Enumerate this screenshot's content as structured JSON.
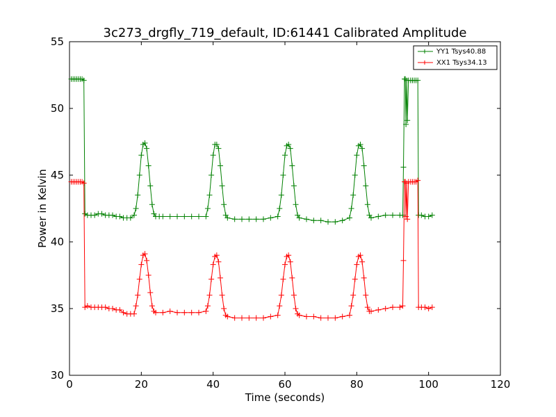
{
  "chart_data": {
    "type": "line",
    "title": "3c273_drgfly_719_default, ID:61441 Calibrated Amplitude",
    "xlabel": "Time (seconds)",
    "ylabel": "Power in Kelvin",
    "xlim": [
      0,
      120
    ],
    "ylim": [
      30,
      55
    ],
    "xticks": [
      "0",
      "20",
      "40",
      "60",
      "80",
      "100",
      "120"
    ],
    "yticks": [
      "30",
      "35",
      "40",
      "45",
      "50",
      "55"
    ],
    "grid": false,
    "legend_position": "top-right",
    "series": [
      {
        "name": "YY1 Tsys40.88",
        "color": "#008000",
        "marker": "+",
        "points": [
          [
            0.5,
            52.2
          ],
          [
            1.0,
            52.2
          ],
          [
            1.5,
            52.2
          ],
          [
            2.0,
            52.2
          ],
          [
            2.5,
            52.2
          ],
          [
            3.0,
            52.2
          ],
          [
            3.5,
            52.2
          ],
          [
            4.0,
            52.1
          ],
          [
            4.3,
            42.1
          ],
          [
            5.0,
            42.0
          ],
          [
            6.0,
            42.0
          ],
          [
            7.0,
            42.0
          ],
          [
            8.0,
            42.1
          ],
          [
            9.0,
            42.1
          ],
          [
            10.0,
            42.0
          ],
          [
            11.0,
            42.0
          ],
          [
            12.0,
            42.0
          ],
          [
            13.0,
            41.9
          ],
          [
            14.0,
            41.9
          ],
          [
            15.0,
            41.8
          ],
          [
            16.0,
            41.8
          ],
          [
            17.0,
            41.8
          ],
          [
            18.0,
            42.0
          ],
          [
            18.5,
            42.5
          ],
          [
            19.0,
            43.5
          ],
          [
            19.5,
            45.0
          ],
          [
            20.0,
            46.5
          ],
          [
            20.5,
            47.3
          ],
          [
            21.0,
            47.4
          ],
          [
            21.5,
            47.0
          ],
          [
            22.0,
            45.7
          ],
          [
            22.5,
            44.2
          ],
          [
            23.0,
            42.8
          ],
          [
            23.5,
            42.1
          ],
          [
            24.0,
            41.9
          ],
          [
            25.0,
            41.9
          ],
          [
            26.0,
            41.9
          ],
          [
            28.0,
            41.9
          ],
          [
            30.0,
            41.9
          ],
          [
            32.0,
            41.9
          ],
          [
            34.0,
            41.9
          ],
          [
            36.0,
            41.9
          ],
          [
            38.0,
            41.9
          ],
          [
            38.5,
            42.5
          ],
          [
            39.0,
            43.5
          ],
          [
            39.5,
            45.0
          ],
          [
            40.0,
            46.5
          ],
          [
            40.5,
            47.3
          ],
          [
            41.0,
            47.3
          ],
          [
            41.5,
            47.0
          ],
          [
            42.0,
            45.7
          ],
          [
            42.5,
            44.2
          ],
          [
            43.0,
            42.8
          ],
          [
            43.5,
            42.0
          ],
          [
            44.0,
            41.8
          ],
          [
            46.0,
            41.7
          ],
          [
            48.0,
            41.7
          ],
          [
            50.0,
            41.7
          ],
          [
            52.0,
            41.7
          ],
          [
            54.0,
            41.7
          ],
          [
            56.0,
            41.8
          ],
          [
            58.0,
            41.9
          ],
          [
            58.5,
            42.5
          ],
          [
            59.0,
            43.5
          ],
          [
            59.5,
            45.0
          ],
          [
            60.0,
            46.5
          ],
          [
            60.5,
            47.2
          ],
          [
            61.0,
            47.3
          ],
          [
            61.5,
            47.0
          ],
          [
            62.0,
            45.7
          ],
          [
            62.5,
            44.2
          ],
          [
            63.0,
            42.8
          ],
          [
            63.5,
            42.0
          ],
          [
            64.0,
            41.8
          ],
          [
            66.0,
            41.7
          ],
          [
            68.0,
            41.6
          ],
          [
            70.0,
            41.6
          ],
          [
            72.0,
            41.5
          ],
          [
            74.0,
            41.5
          ],
          [
            76.0,
            41.6
          ],
          [
            78.0,
            41.8
          ],
          [
            78.5,
            42.5
          ],
          [
            79.0,
            43.5
          ],
          [
            79.5,
            45.0
          ],
          [
            80.0,
            46.5
          ],
          [
            80.5,
            47.2
          ],
          [
            81.0,
            47.3
          ],
          [
            81.5,
            47.0
          ],
          [
            82.0,
            45.7
          ],
          [
            82.5,
            44.2
          ],
          [
            83.0,
            42.8
          ],
          [
            83.5,
            42.0
          ],
          [
            84.0,
            41.8
          ],
          [
            86.0,
            41.9
          ],
          [
            88.0,
            42.0
          ],
          [
            90.0,
            42.0
          ],
          [
            92.0,
            42.0
          ],
          [
            92.8,
            42.0
          ],
          [
            93.0,
            45.6
          ],
          [
            93.3,
            52.2
          ],
          [
            93.5,
            52.2
          ],
          [
            93.7,
            48.8
          ],
          [
            93.9,
            52.1
          ],
          [
            94.1,
            49.1
          ],
          [
            94.4,
            52.1
          ],
          [
            95.0,
            52.1
          ],
          [
            95.5,
            52.1
          ],
          [
            96.0,
            52.1
          ],
          [
            96.5,
            52.1
          ],
          [
            97.0,
            52.1
          ],
          [
            97.2,
            42.0
          ],
          [
            98.0,
            42.0
          ],
          [
            99.0,
            41.9
          ],
          [
            100.0,
            41.9
          ],
          [
            101.0,
            42.0
          ]
        ]
      },
      {
        "name": "XX1 Tsys34.13",
        "color": "#ff0000",
        "marker": "+",
        "points": [
          [
            0.5,
            44.5
          ],
          [
            1.0,
            44.5
          ],
          [
            1.5,
            44.5
          ],
          [
            2.0,
            44.5
          ],
          [
            2.5,
            44.5
          ],
          [
            3.0,
            44.5
          ],
          [
            3.5,
            44.5
          ],
          [
            4.0,
            44.4
          ],
          [
            4.3,
            35.1
          ],
          [
            5.0,
            35.2
          ],
          [
            6.0,
            35.1
          ],
          [
            7.0,
            35.1
          ],
          [
            8.0,
            35.1
          ],
          [
            9.0,
            35.1
          ],
          [
            10.0,
            35.1
          ],
          [
            11.0,
            35.0
          ],
          [
            12.0,
            35.0
          ],
          [
            13.0,
            34.9
          ],
          [
            14.0,
            34.9
          ],
          [
            15.0,
            34.7
          ],
          [
            16.0,
            34.6
          ],
          [
            17.0,
            34.6
          ],
          [
            18.0,
            34.6
          ],
          [
            18.5,
            35.2
          ],
          [
            19.0,
            36.0
          ],
          [
            19.5,
            37.2
          ],
          [
            20.0,
            38.3
          ],
          [
            20.5,
            39.0
          ],
          [
            21.0,
            39.1
          ],
          [
            21.5,
            38.6
          ],
          [
            22.0,
            37.5
          ],
          [
            22.5,
            36.2
          ],
          [
            23.0,
            35.2
          ],
          [
            23.5,
            34.8
          ],
          [
            24.0,
            34.7
          ],
          [
            26.0,
            34.7
          ],
          [
            28.0,
            34.8
          ],
          [
            30.0,
            34.7
          ],
          [
            32.0,
            34.7
          ],
          [
            34.0,
            34.7
          ],
          [
            36.0,
            34.7
          ],
          [
            38.0,
            34.8
          ],
          [
            38.5,
            35.2
          ],
          [
            39.0,
            36.0
          ],
          [
            39.5,
            37.2
          ],
          [
            40.0,
            38.3
          ],
          [
            40.5,
            38.9
          ],
          [
            41.0,
            39.0
          ],
          [
            41.5,
            38.5
          ],
          [
            42.0,
            37.3
          ],
          [
            42.5,
            36.0
          ],
          [
            43.0,
            35.0
          ],
          [
            43.5,
            34.5
          ],
          [
            44.0,
            34.4
          ],
          [
            46.0,
            34.3
          ],
          [
            48.0,
            34.3
          ],
          [
            50.0,
            34.3
          ],
          [
            52.0,
            34.3
          ],
          [
            54.0,
            34.3
          ],
          [
            56.0,
            34.4
          ],
          [
            58.0,
            34.5
          ],
          [
            58.5,
            35.2
          ],
          [
            59.0,
            36.0
          ],
          [
            59.5,
            37.2
          ],
          [
            60.0,
            38.3
          ],
          [
            60.5,
            38.9
          ],
          [
            61.0,
            39.0
          ],
          [
            61.5,
            38.5
          ],
          [
            62.0,
            37.3
          ],
          [
            62.5,
            36.0
          ],
          [
            63.0,
            35.0
          ],
          [
            63.5,
            34.6
          ],
          [
            64.0,
            34.5
          ],
          [
            66.0,
            34.4
          ],
          [
            68.0,
            34.4
          ],
          [
            70.0,
            34.3
          ],
          [
            72.0,
            34.3
          ],
          [
            74.0,
            34.3
          ],
          [
            76.0,
            34.4
          ],
          [
            78.0,
            34.5
          ],
          [
            78.5,
            35.2
          ],
          [
            79.0,
            36.0
          ],
          [
            79.5,
            37.2
          ],
          [
            80.0,
            38.3
          ],
          [
            80.5,
            38.9
          ],
          [
            81.0,
            39.0
          ],
          [
            81.5,
            38.5
          ],
          [
            82.0,
            37.3
          ],
          [
            82.5,
            36.0
          ],
          [
            83.0,
            35.1
          ],
          [
            83.5,
            34.8
          ],
          [
            84.0,
            34.8
          ],
          [
            86.0,
            34.9
          ],
          [
            88.0,
            35.0
          ],
          [
            90.0,
            35.1
          ],
          [
            92.0,
            35.1
          ],
          [
            92.8,
            35.2
          ],
          [
            93.0,
            38.6
          ],
          [
            93.3,
            44.5
          ],
          [
            93.5,
            44.5
          ],
          [
            93.7,
            41.9
          ],
          [
            93.9,
            44.4
          ],
          [
            94.1,
            41.7
          ],
          [
            94.4,
            44.5
          ],
          [
            95.0,
            44.5
          ],
          [
            95.5,
            44.5
          ],
          [
            96.0,
            44.5
          ],
          [
            96.5,
            44.5
          ],
          [
            97.0,
            44.6
          ],
          [
            97.2,
            35.1
          ],
          [
            98.0,
            35.1
          ],
          [
            99.0,
            35.1
          ],
          [
            100.0,
            35.0
          ],
          [
            101.0,
            35.1
          ]
        ]
      }
    ]
  }
}
